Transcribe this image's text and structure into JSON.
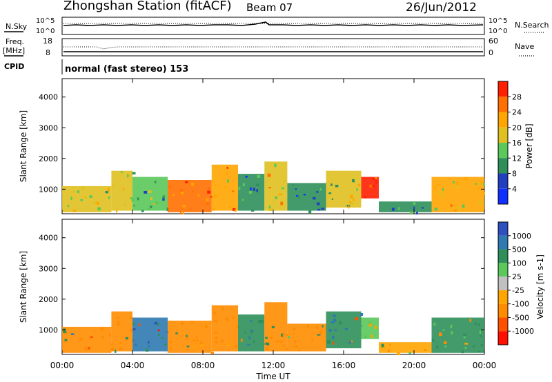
{
  "header": {
    "station": "Zhongshan Station (fitACF)",
    "beam": "Beam 07",
    "date": "26/Jun/2012"
  },
  "noise_panel": {
    "left_label": "N.Sky",
    "right_label": "N.Search",
    "left_ticks": [
      "10^5",
      "10^0"
    ],
    "right_ticks": [
      "10^5",
      "10^0"
    ]
  },
  "freq_panel": {
    "left_label_line1": "Freq.",
    "left_label_line2": "[MHz]",
    "right_label": "Nave",
    "left_ticks": [
      "18",
      "8"
    ],
    "right_ticks": [
      "60",
      "0"
    ]
  },
  "cpid": {
    "label": "CPID",
    "value": "normal (fast stereo) 153"
  },
  "colors": {
    "power_scale": [
      "#1030ff",
      "#2040c0",
      "#2f8f5a",
      "#5ac85a",
      "#e0c020",
      "#ffa500",
      "#ff7000",
      "#ff2000"
    ],
    "velocity_scale": [
      "#3050c0",
      "#2f7ab0",
      "#2f8f5a",
      "#5ac85a",
      "#c0c0c0",
      "#ffa500",
      "#ff8c00",
      "#ff5000",
      "#ff1000"
    ]
  },
  "chart_data": [
    {
      "type": "heatmap",
      "name": "power",
      "ylabel": "Slant Range [km]",
      "yticks": [
        "1000",
        "2000",
        "3000",
        "4000"
      ],
      "ylim": [
        200,
        4600
      ],
      "xlim": [
        0,
        24
      ],
      "colorbar": {
        "label": "Power [dB]",
        "ticks": [
          "4",
          "8",
          "12",
          "16",
          "20",
          "24",
          "28"
        ],
        "range": [
          0,
          32
        ]
      },
      "patches": [
        {
          "t0": 0.0,
          "t1": 2.8,
          "r0": 250,
          "r1": 1100,
          "value": 18
        },
        {
          "t0": 2.8,
          "t1": 4.0,
          "r0": 300,
          "r1": 1600,
          "value": 16
        },
        {
          "t0": 4.0,
          "t1": 6.0,
          "r0": 300,
          "r1": 1400,
          "value": 14
        },
        {
          "t0": 6.0,
          "t1": 8.5,
          "r0": 250,
          "r1": 1300,
          "value": 27
        },
        {
          "t0": 8.5,
          "t1": 10.0,
          "r0": 300,
          "r1": 1800,
          "value": 22
        },
        {
          "t0": 10.0,
          "t1": 11.5,
          "r0": 300,
          "r1": 1500,
          "value": 10
        },
        {
          "t0": 11.5,
          "t1": 12.8,
          "r0": 300,
          "r1": 1900,
          "value": 18
        },
        {
          "t0": 12.8,
          "t1": 15.0,
          "r0": 300,
          "r1": 1200,
          "value": 8
        },
        {
          "t0": 15.0,
          "t1": 17.0,
          "r0": 400,
          "r1": 1600,
          "value": 18
        },
        {
          "t0": 17.0,
          "t1": 18.0,
          "r0": 700,
          "r1": 1400,
          "value": 30
        },
        {
          "t0": 18.0,
          "t1": 21.0,
          "r0": 250,
          "r1": 600,
          "value": 10
        },
        {
          "t0": 21.0,
          "t1": 24.0,
          "r0": 250,
          "r1": 1400,
          "value": 20
        }
      ]
    },
    {
      "type": "heatmap",
      "name": "velocity",
      "ylabel": "Slant Range [km]",
      "yticks": [
        "1000",
        "2000",
        "3000",
        "4000"
      ],
      "ylim": [
        200,
        4600
      ],
      "xlim": [
        0,
        24
      ],
      "xticks": [
        "00:00",
        "04:00",
        "08:00",
        "12:00",
        "16:00",
        "20:00",
        "00:00"
      ],
      "xlabel": "Time UT",
      "colorbar": {
        "label": "Velocity [m s-1]",
        "ticks": [
          "1000",
          "500",
          "100",
          "25",
          "-25",
          "-100",
          "-500",
          "-1000"
        ]
      },
      "patches": [
        {
          "t0": 0.0,
          "t1": 2.8,
          "r0": 250,
          "r1": 1100,
          "value": -300
        },
        {
          "t0": 2.8,
          "t1": 4.0,
          "r0": 300,
          "r1": 1600,
          "value": -200
        },
        {
          "t0": 4.0,
          "t1": 6.0,
          "r0": 300,
          "r1": 1400,
          "value": 600
        },
        {
          "t0": 6.0,
          "t1": 8.5,
          "r0": 250,
          "r1": 1300,
          "value": -150
        },
        {
          "t0": 8.5,
          "t1": 10.0,
          "r0": 300,
          "r1": 1800,
          "value": -200
        },
        {
          "t0": 10.0,
          "t1": 11.5,
          "r0": 300,
          "r1": 1500,
          "value": 300
        },
        {
          "t0": 11.5,
          "t1": 12.8,
          "r0": 300,
          "r1": 1900,
          "value": -250
        },
        {
          "t0": 12.8,
          "t1": 15.0,
          "r0": 300,
          "r1": 1200,
          "value": -200
        },
        {
          "t0": 15.0,
          "t1": 17.0,
          "r0": 400,
          "r1": 1600,
          "value": 400
        },
        {
          "t0": 17.0,
          "t1": 18.0,
          "r0": 700,
          "r1": 1400,
          "value": 50
        },
        {
          "t0": 18.0,
          "t1": 21.0,
          "r0": 250,
          "r1": 600,
          "value": -80
        },
        {
          "t0": 21.0,
          "t1": 24.0,
          "r0": 250,
          "r1": 1400,
          "value": 100
        }
      ]
    }
  ]
}
